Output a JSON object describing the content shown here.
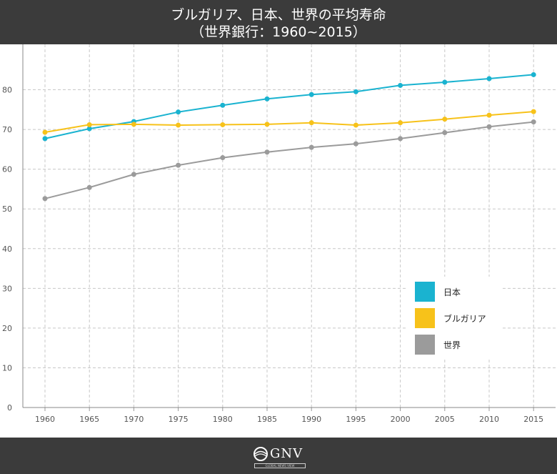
{
  "header": {
    "title_line1": "ブルガリア、日本、世界の平均寿命",
    "title_line2": "（世界銀行：1960~2015）"
  },
  "footer": {
    "logo_text": "GNV",
    "logo_tagline": "GLOBAL NEWS VIEW"
  },
  "chart_data": {
    "type": "line",
    "title": "ブルガリア、日本、世界の平均寿命（世界銀行：1960~2015）",
    "x": [
      1960,
      1965,
      1970,
      1975,
      1980,
      1985,
      1990,
      1995,
      2000,
      2005,
      2010,
      2015
    ],
    "ylim": [
      0,
      90
    ],
    "yticks": [
      0,
      10,
      20,
      30,
      40,
      50,
      60,
      70,
      80
    ],
    "grid": true,
    "legend_position": "right",
    "series": [
      {
        "name": "日本",
        "color": "#1ab3d0",
        "values": [
          67.7,
          70.2,
          72.0,
          74.4,
          76.1,
          77.7,
          78.8,
          79.5,
          81.1,
          81.9,
          82.8,
          83.8
        ]
      },
      {
        "name": "ブルガリア",
        "color": "#f7c21a",
        "values": [
          69.3,
          71.2,
          71.3,
          71.1,
          71.2,
          71.3,
          71.7,
          71.1,
          71.7,
          72.6,
          73.6,
          74.5
        ]
      },
      {
        "name": "世界",
        "color": "#9b9b9b",
        "values": [
          52.6,
          55.4,
          58.7,
          61.0,
          62.9,
          64.3,
          65.5,
          66.4,
          67.7,
          69.2,
          70.7,
          71.9
        ]
      }
    ]
  }
}
